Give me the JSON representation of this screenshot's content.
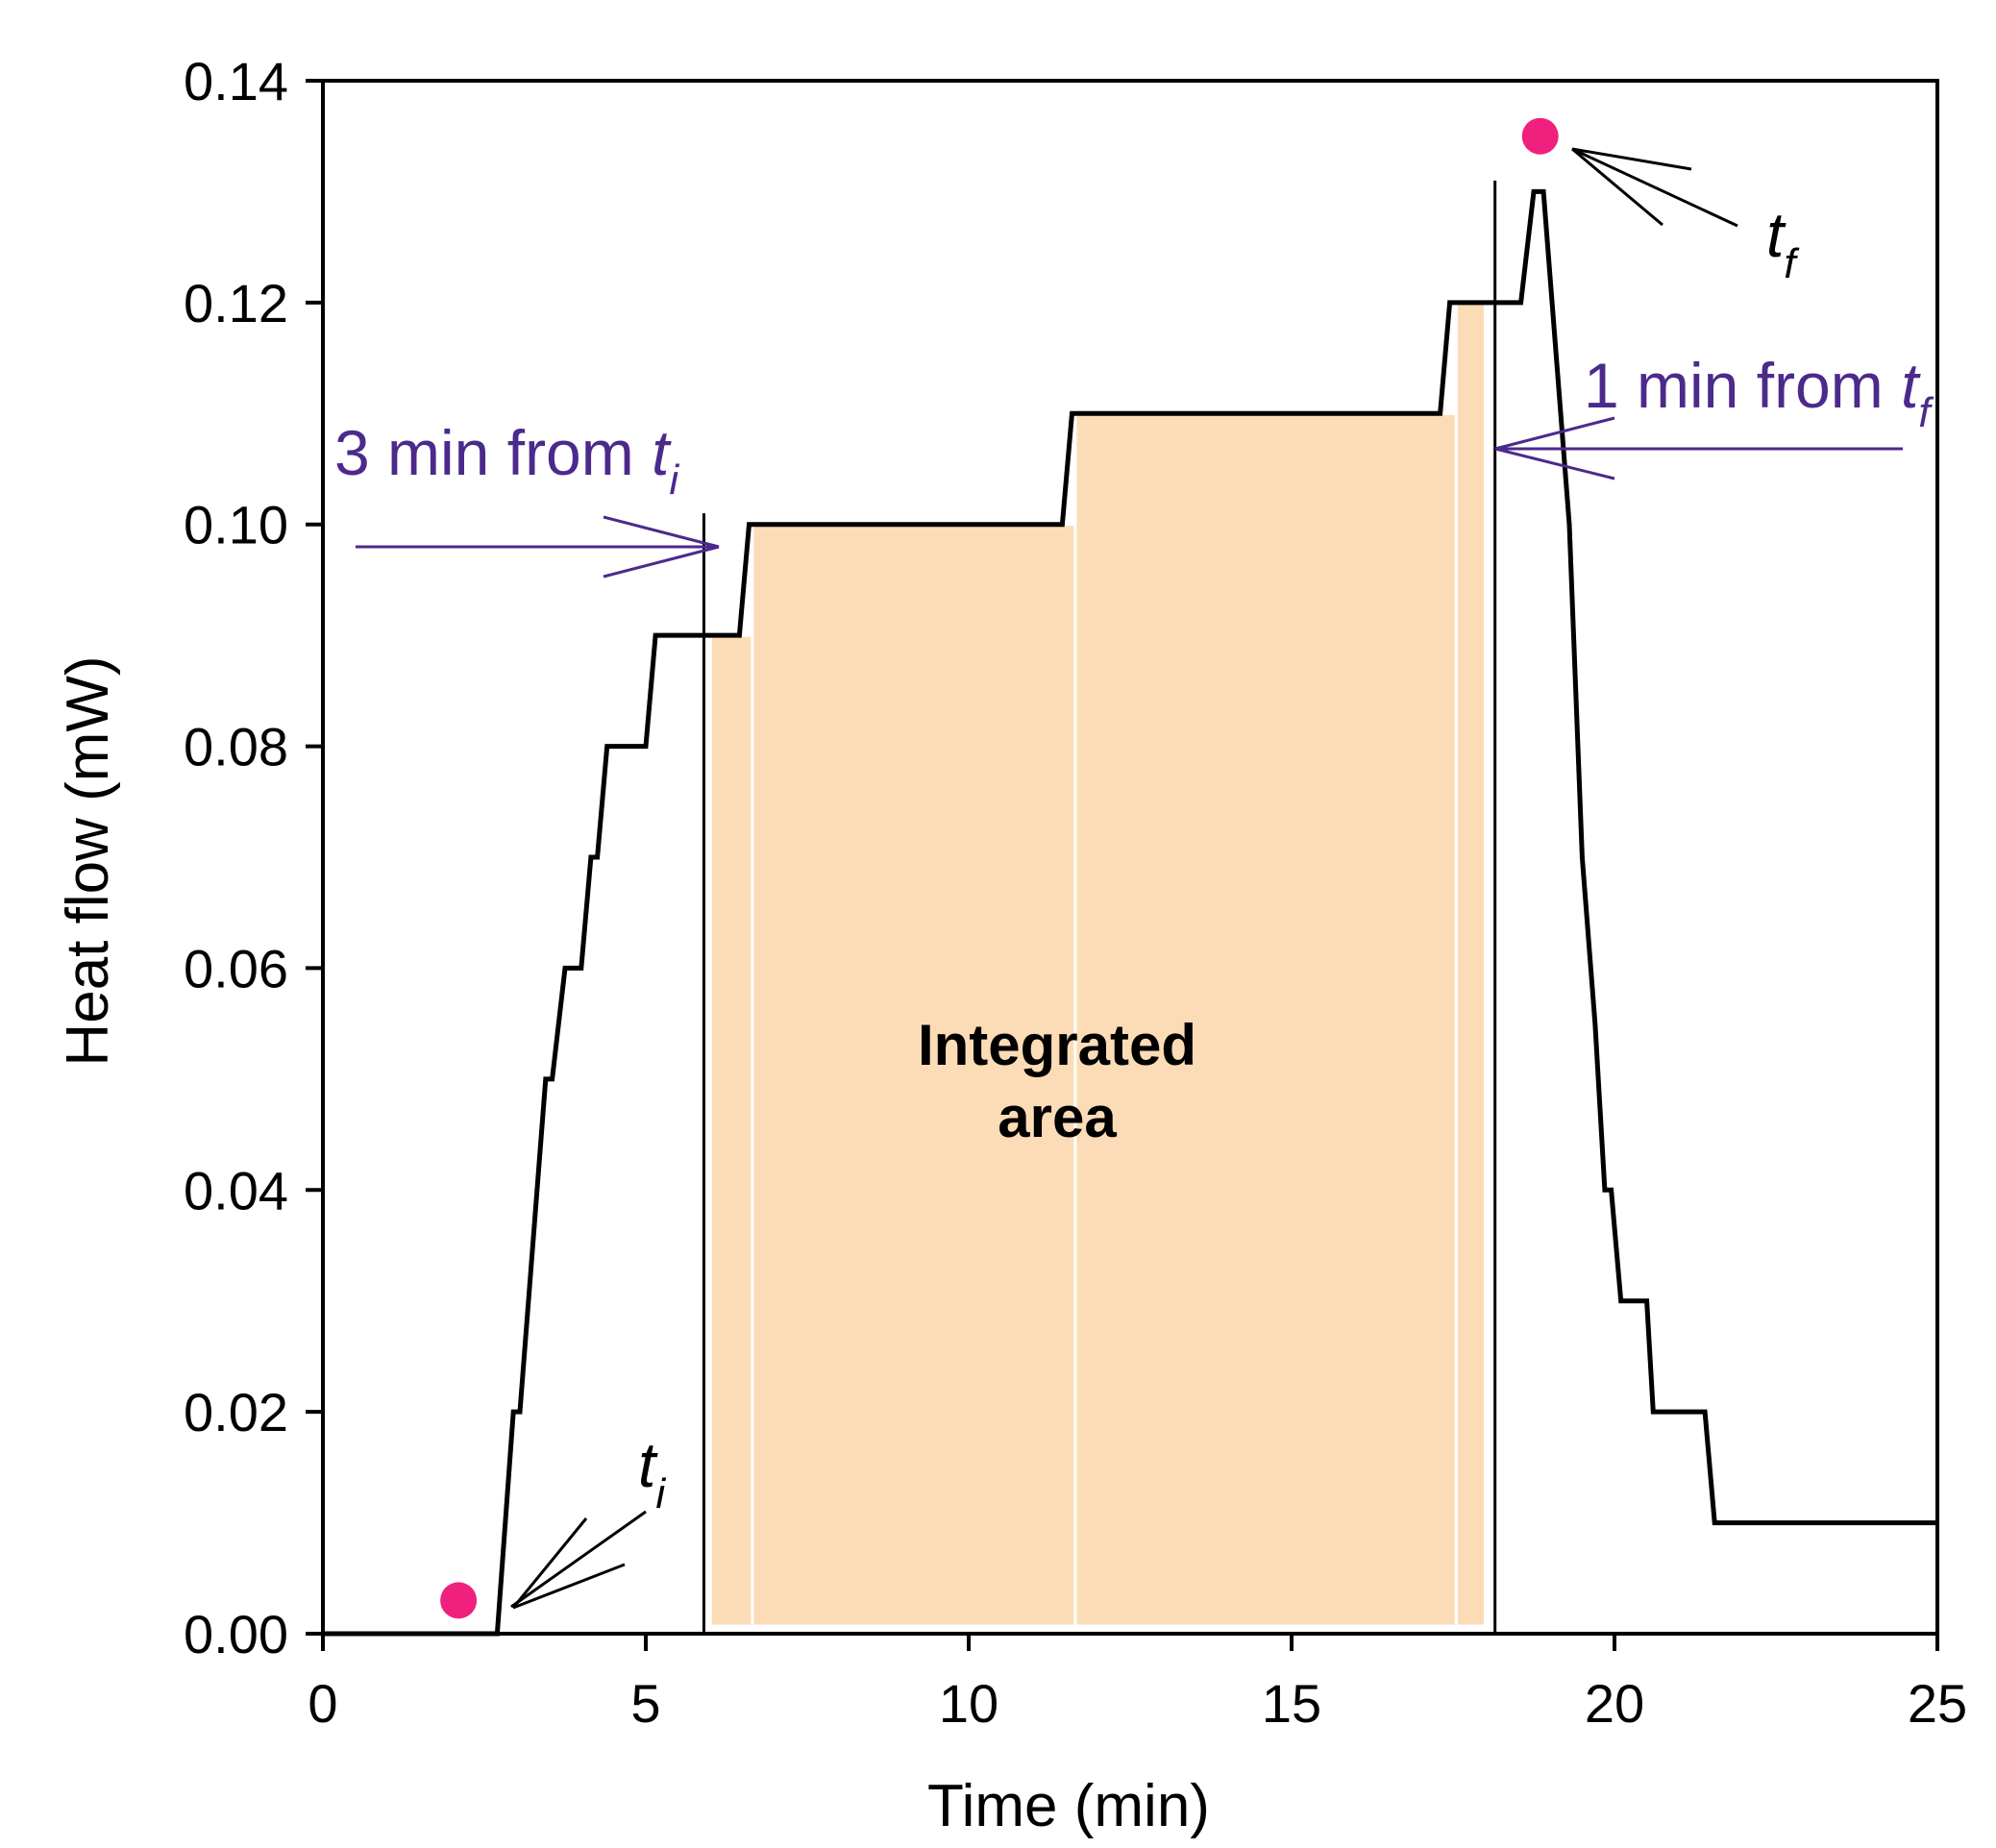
{
  "chart_data": {
    "type": "line",
    "xlabel": "Time (min)",
    "ylabel": "Heat flow (mW)",
    "xlim": [
      0,
      25
    ],
    "ylim": [
      0,
      0.14
    ],
    "x_ticks": [
      0,
      5,
      10,
      15,
      20,
      25
    ],
    "x_tick_labels": [
      "0",
      "5",
      "10",
      "15",
      "20",
      "25"
    ],
    "y_ticks": [
      0,
      0.02,
      0.04,
      0.06,
      0.08,
      0.1,
      0.12,
      0.14
    ],
    "y_tick_labels": [
      "0.00",
      "0.02",
      "0.04",
      "0.06",
      "0.08",
      "0.10",
      "0.12",
      "0.14"
    ],
    "grid": false,
    "series": [
      {
        "color": "#000000",
        "points": [
          [
            0,
            0
          ],
          [
            2.7,
            0
          ],
          [
            2.95,
            0.02
          ],
          [
            3.05,
            0.02
          ],
          [
            3.45,
            0.05
          ],
          [
            3.55,
            0.05
          ],
          [
            3.75,
            0.06
          ],
          [
            4.0,
            0.06
          ],
          [
            4.15,
            0.07
          ],
          [
            4.25,
            0.07
          ],
          [
            4.4,
            0.08
          ],
          [
            5.0,
            0.08
          ],
          [
            5.15,
            0.09
          ],
          [
            5.95,
            0.09
          ],
          [
            6.45,
            0.09
          ],
          [
            6.6,
            0.1
          ],
          [
            11.45,
            0.1
          ],
          [
            11.6,
            0.11
          ],
          [
            17.3,
            0.11
          ],
          [
            17.45,
            0.12
          ],
          [
            18.55,
            0.12
          ],
          [
            18.75,
            0.13
          ],
          [
            18.9,
            0.13
          ],
          [
            19.3,
            0.1
          ],
          [
            19.5,
            0.07
          ],
          [
            19.7,
            0.055
          ],
          [
            19.85,
            0.04
          ],
          [
            19.95,
            0.04
          ],
          [
            20.1,
            0.03
          ],
          [
            20.5,
            0.03
          ],
          [
            20.6,
            0.02
          ],
          [
            21.4,
            0.02
          ],
          [
            21.55,
            0.01
          ],
          [
            25,
            0.01
          ]
        ]
      }
    ],
    "integrated_area": {
      "color": "#fcdcb6",
      "label_line1": "Integrated",
      "label_line2": "area",
      "bars": [
        {
          "x0": 6.0,
          "x1": 7.35,
          "y": 0.09
        },
        {
          "x0": 6.65,
          "x1": 11.65,
          "y": 0.1
        },
        {
          "x0": 11.65,
          "x1": 17.75,
          "y": 0.11
        },
        {
          "x0": 17.55,
          "x1": 18.0,
          "y": 0.12
        }
      ]
    },
    "vertical_lines": [
      {
        "x": 5.9,
        "y_top": 0.101
      },
      {
        "x": 18.15,
        "y_top": 0.131
      }
    ],
    "markers": [
      {
        "x": 2.1,
        "y": 0.003,
        "color": "#f0207e"
      },
      {
        "x": 18.85,
        "y": 0.135,
        "color": "#f0207e"
      }
    ],
    "annotations": {
      "ti_label": {
        "main": "t",
        "sub": "i"
      },
      "tf_label": {
        "main": "t",
        "sub": "f"
      },
      "three_min": {
        "text": "3 min from ",
        "var": "t",
        "sub": "i",
        "color": "#4b2a8c"
      },
      "one_min": {
        "text": "1 min from ",
        "var": "t",
        "sub": "f",
        "color": "#4b2a8c"
      }
    }
  }
}
